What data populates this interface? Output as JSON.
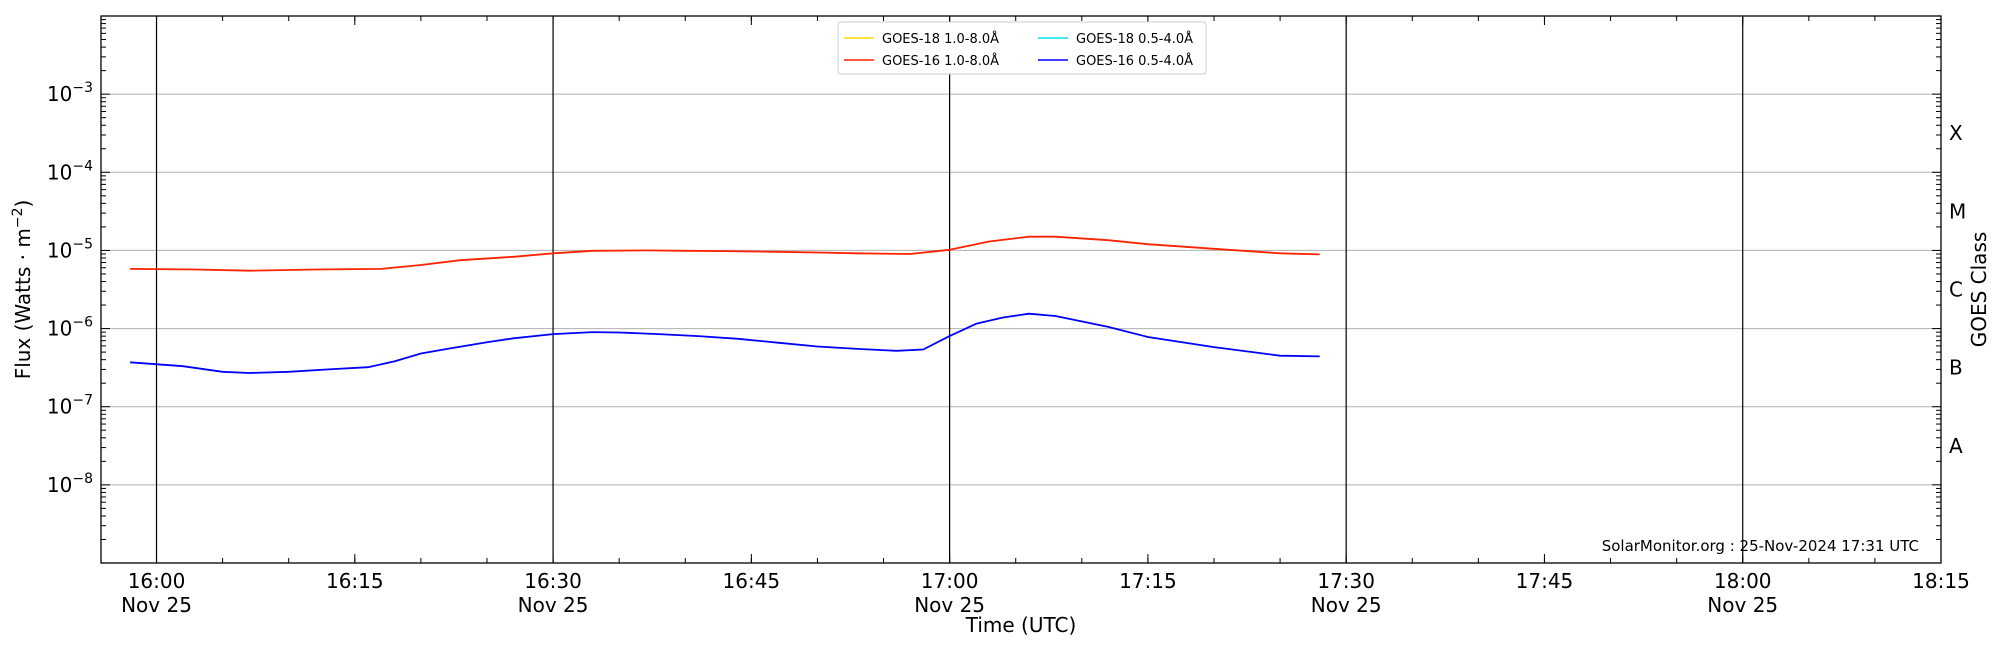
{
  "chart_data": {
    "type": "line",
    "xlabel": "Time (UTC)",
    "ylabel": "Flux (Watts · m",
    "ylabel_sup": "−2",
    "ylabel_close": ")",
    "right_label": "GOES Class",
    "x_range_min": [
      15.93,
      18.25
    ],
    "y_range_log10": [
      -9,
      -2
    ],
    "y_scale": "log",
    "grid": "horizontal at decades; vertical at hours and half-hours",
    "legend_position": "top-center",
    "x_ticks": [
      {
        "t": 16.0,
        "label": "16:00",
        "date": "Nov 25"
      },
      {
        "t": 16.25,
        "label": "16:15",
        "date": ""
      },
      {
        "t": 16.5,
        "label": "16:30",
        "date": "Nov 25"
      },
      {
        "t": 16.75,
        "label": "16:45",
        "date": ""
      },
      {
        "t": 17.0,
        "label": "17:00",
        "date": "Nov 25"
      },
      {
        "t": 17.25,
        "label": "17:15",
        "date": ""
      },
      {
        "t": 17.5,
        "label": "17:30",
        "date": "Nov 25"
      },
      {
        "t": 17.75,
        "label": "17:45",
        "date": ""
      },
      {
        "t": 18.0,
        "label": "18:00",
        "date": "Nov 25"
      },
      {
        "t": 18.25,
        "label": "18:15",
        "date": ""
      }
    ],
    "y_ticks": [
      {
        "exp": -8,
        "base": "10",
        "sup": "−8"
      },
      {
        "exp": -7,
        "base": "10",
        "sup": "−7"
      },
      {
        "exp": -6,
        "base": "10",
        "sup": "−6"
      },
      {
        "exp": -5,
        "base": "10",
        "sup": "−5"
      },
      {
        "exp": -4,
        "base": "10",
        "sup": "−4"
      },
      {
        "exp": -3,
        "base": "10",
        "sup": "−3"
      }
    ],
    "goes_classes": [
      {
        "label": "A",
        "log": -7.5
      },
      {
        "label": "B",
        "log": -6.5
      },
      {
        "label": "C",
        "log": -5.5
      },
      {
        "label": "M",
        "log": -4.5
      },
      {
        "label": "X",
        "log": -3.5
      }
    ],
    "legend": [
      {
        "label": "GOES-18 1.0-8.0Å",
        "color": "#ffd700"
      },
      {
        "label": "GOES-18 0.5-4.0Å",
        "color": "#00e5ee"
      },
      {
        "label": "GOES-16 1.0-8.0Å",
        "color": "#ff2200"
      },
      {
        "label": "GOES-16 0.5-4.0Å",
        "color": "#0000ff"
      }
    ],
    "series": [
      {
        "name": "GOES-16 1.0-8.0Å",
        "color": "#ff2200",
        "x": [
          "15:58",
          "16:03",
          "16:07",
          "16:12",
          "16:17",
          "16:20",
          "16:23",
          "16:27",
          "16:30",
          "16:33",
          "16:37",
          "16:40",
          "16:43",
          "16:47",
          "16:50",
          "16:53",
          "16:57",
          "17:00",
          "17:03",
          "17:06",
          "17:08",
          "17:12",
          "17:15",
          "17:20",
          "17:25",
          "17:28"
        ],
        "y": [
          5.8e-06,
          5.7e-06,
          5.5e-06,
          5.7e-06,
          5.8e-06,
          6.5e-06,
          7.5e-06,
          8.3e-06,
          9.2e-06,
          9.9e-06,
          1e-05,
          9.9e-06,
          9.8e-06,
          9.6e-06,
          9.4e-06,
          9.2e-06,
          9e-06,
          1.02e-05,
          1.3e-05,
          1.5e-05,
          1.5e-05,
          1.35e-05,
          1.2e-05,
          1.05e-05,
          9.2e-06,
          8.9e-06
        ]
      },
      {
        "name": "GOES-16 0.5-4.0Å",
        "color": "#0000ff",
        "x": [
          "15:58",
          "16:02",
          "16:05",
          "16:07",
          "16:10",
          "16:13",
          "16:16",
          "16:18",
          "16:20",
          "16:22",
          "16:25",
          "16:27",
          "16:30",
          "16:33",
          "16:35",
          "16:38",
          "16:41",
          "16:44",
          "16:47",
          "16:50",
          "16:53",
          "16:56",
          "16:58",
          "17:00",
          "17:02",
          "17:04",
          "17:06",
          "17:08",
          "17:12",
          "17:15",
          "17:20",
          "17:25",
          "17:28"
        ],
        "y": [
          3.7e-07,
          3.3e-07,
          2.8e-07,
          2.7e-07,
          2.8e-07,
          3e-07,
          3.2e-07,
          3.8e-07,
          4.8e-07,
          5.5e-07,
          6.7e-07,
          7.5e-07,
          8.5e-07,
          9e-07,
          8.9e-07,
          8.5e-07,
          8e-07,
          7.4e-07,
          6.6e-07,
          5.9e-07,
          5.5e-07,
          5.2e-07,
          5.4e-07,
          8e-07,
          1.15e-06,
          1.38e-06,
          1.55e-06,
          1.45e-06,
          1.05e-06,
          7.8e-07,
          5.8e-07,
          4.5e-07,
          4.4e-07
        ]
      }
    ],
    "watermark": "SolarMonitor.org : 25-Nov-2024 17:31 UTC"
  }
}
